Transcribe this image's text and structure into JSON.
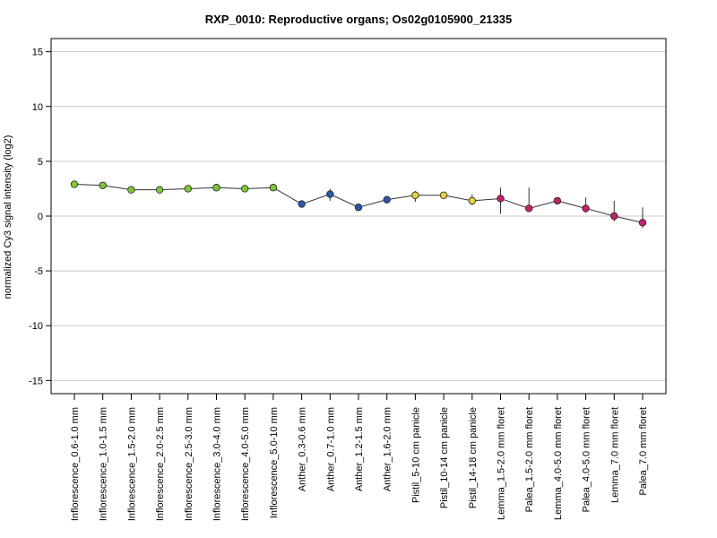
{
  "chart_data": {
    "type": "line",
    "title": "RXP_0010: Reproductive organs; Os02g0105900_21335",
    "xlabel": "",
    "ylabel": "normalized Cy3 signal intensity (log2)",
    "ylim": [
      -16.2,
      16.2
    ],
    "yticks": [
      15,
      10,
      5,
      0,
      -5,
      -10,
      -15
    ],
    "ytick_labels": [
      "15",
      "10",
      "5",
      "0",
      "-5",
      "-10",
      "-15"
    ],
    "grid": "horizontal",
    "categories": [
      "Inflorescence_0.6-1.0 mm",
      "Inflorescence_1.0-1.5 mm",
      "Inflorescence_1.5-2.0 mm",
      "Inflorescence_2.0-2.5 mm",
      "Inflorescence_2.5-3.0 mm",
      "Inflorescence_3.0-4.0 mm",
      "Inflorescence_4.0-5.0 mm",
      "Inflorescence_5.0-10 mm",
      "Anther_0.3-0.6 mm",
      "Anther_0.7-1.0 mm",
      "Anther_1.2-1.5 mm",
      "Anther_1.6-2.0 mm",
      "Pistil_5-10 cm panicle",
      "Pistil_10-14 cm panicle",
      "Pistil_14-18 cm panicle",
      "Lemma_1.5-2.0 mm floret",
      "Palea_1.5-2.0 mm floret",
      "Lemma_4.0-5.0 mm floret",
      "Palea_4.0-5.0 mm floret",
      "Lemma_7.0 mm floret",
      "Palea_7.0 mm floret"
    ],
    "series": [
      {
        "values": [
          2.9,
          2.8,
          2.4,
          2.4,
          2.5,
          2.6,
          2.5,
          2.6,
          1.1,
          2.0,
          0.8,
          1.5,
          1.9,
          1.9,
          1.4,
          1.6,
          0.7,
          1.4,
          0.7,
          0.0,
          -0.6
        ],
        "err_low": [
          2.7,
          2.6,
          2.2,
          2.2,
          2.3,
          2.4,
          2.3,
          2.4,
          0.9,
          1.4,
          0.5,
          1.3,
          1.3,
          1.6,
          1.0,
          0.2,
          0.5,
          1.1,
          0.3,
          -0.5,
          -1.1
        ],
        "err_high": [
          3.0,
          3.0,
          2.6,
          2.6,
          2.7,
          2.8,
          2.7,
          2.8,
          1.3,
          2.5,
          1.1,
          1.7,
          2.3,
          2.2,
          2.0,
          2.6,
          2.6,
          1.7,
          1.7,
          1.4,
          0.8
        ],
        "colors": [
          "#7dc832",
          "#7dc832",
          "#7dc832",
          "#7dc832",
          "#7dc832",
          "#7dc832",
          "#7dc832",
          "#7dc832",
          "#2a55b0",
          "#2a55b0",
          "#2a55b0",
          "#2a55b0",
          "#e8d23c",
          "#e8d23c",
          "#e8d23c",
          "#c81e6e",
          "#c81e6e",
          "#c81e6e",
          "#c81e6e",
          "#c81e6e",
          "#c81e6e"
        ]
      }
    ]
  }
}
